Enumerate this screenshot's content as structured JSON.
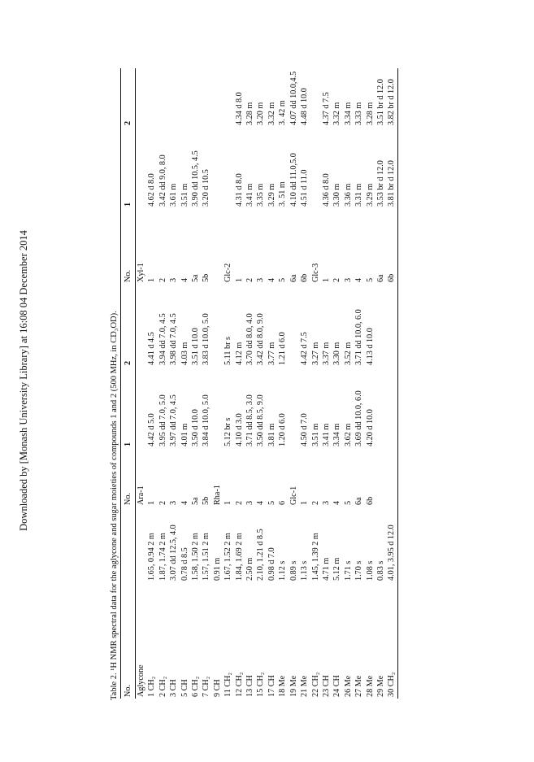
{
  "side_note": "Downloaded by [Monash University Library] at 16:08 04 December 2014",
  "caption": "Table 2.  ¹H NMR spectral data for the aglycone and sugar moieties of compounds 1 and 2 (500 MHz, in CD₃OD).",
  "table": {
    "header": [
      "No.",
      null,
      "No.",
      "1",
      "2",
      "No.",
      "1",
      "2"
    ],
    "rows": [
      [
        "Aglycone",
        null,
        "Ara-1",
        null,
        null,
        "Xyl-1",
        null,
        null
      ],
      [
        "1 CH₂",
        "1.65, 0.94 2 m",
        "1",
        "4.42 d 5.0",
        "4.41 d 4.5",
        "1",
        "4.62 d 8.0",
        null
      ],
      [
        "2 CH₂",
        "1.87, 1.74 2 m",
        "2",
        "3.95 dd 7.0, 5.0",
        "3.94 dd 7.0, 4.5",
        "2",
        "3.42 dd 9.0, 8.0",
        null
      ],
      [
        "3 CH",
        "3.07 dd 12.5, 4.0",
        "3",
        "3.97 dd 7.0, 4.5",
        "3.98 dd 7.0, 4.5",
        "3",
        "3.61 m",
        null
      ],
      [
        "5 CH",
        "0.78 d 8.5",
        "4",
        "4.01 m",
        "4.03 m",
        "4",
        "3.51 m",
        null
      ],
      [
        "6 CH₂",
        "1.58, 1.50 2 m",
        "5a",
        "3.50 d 10.0",
        "3.51 d 10.0",
        "5a",
        "3.90 dd 10.5, 4.5",
        null
      ],
      [
        "7 CH₂",
        "1.57, 1.51 2 m",
        "5b",
        "3.84 d 10.0, 5.0",
        "3.83 d 10.0, 5.0",
        "5b",
        "3.20 d 10.5",
        null
      ],
      [
        "9 CH",
        "0.91 m",
        "Rha-1",
        null,
        null,
        null,
        null,
        null
      ],
      [
        "11 CH₂",
        "1.67, 1.52 2 m",
        "1",
        "5.12 br s",
        "5.11 br s",
        "Glc-2",
        null,
        null
      ],
      [
        "12 CH₂",
        "1.84, 1.69 2 m",
        "2",
        "4.10 d 3.0",
        "4.12 m",
        "1",
        "4.31 d 8.0",
        "4.34 d 8.0"
      ],
      [
        "13 CH",
        "2.50 m",
        "3",
        "3.71 dd 8.5, 3.0",
        "3.70 dd 8.0, 4.0",
        "2",
        "3.41 m",
        "3.28 m"
      ],
      [
        "15 CH₂",
        "2.10, 1.21 d 8.5",
        "4",
        "3.50 dd 8.5, 9.0",
        "3.42 dd 8.0, 9.0",
        "3",
        "3.35 m",
        "3.20 m"
      ],
      [
        "17 CH",
        "0.98 d 7.0",
        "5",
        "3.81 m",
        "3.77 m",
        "4",
        "3.29 m",
        "3.32 m"
      ],
      [
        "18 Me",
        "1.12 s",
        "6",
        "1.20 d 6.0",
        "1.21 d 6.0",
        "5",
        "3. 51 m",
        "3. 42 m"
      ],
      [
        "19 Me",
        "0.89 s",
        "Glc-1",
        null,
        null,
        "6a",
        "4.10 dd 11.0,5.0",
        "4.07 dd 10.0,4.5"
      ],
      [
        "21 Me",
        "1.13 s",
        "1",
        "4.50 d 7.0",
        "4.42 d 7.5",
        "6b",
        "4.51 d 11.0",
        "4.48 d 10.0"
      ],
      [
        "22 CH₂",
        "1.45, 1.39 2 m",
        "2",
        "3.51 m",
        "3.27 m",
        "Glc-3",
        null,
        null
      ],
      [
        "23 CH",
        "4.71 m",
        "3",
        "3.41 m",
        "3.37 m",
        "1",
        "4.36 d 8.0",
        "4.37 d 7.5"
      ],
      [
        "24 CH",
        "5.12 m",
        "4",
        "3.34 m",
        "3.30 m",
        "2",
        "3.30 m",
        "3.32 m"
      ],
      [
        "26 Me",
        "1.71 s",
        "5",
        "3.62 m",
        "3.52 m",
        "3",
        "3.36 m",
        "3.34 m"
      ],
      [
        "27 Me",
        "1.70 s",
        "6a",
        "3.69 dd 10.0, 6.0",
        "3.71 dd 10.0, 6.0",
        "4",
        "3.31 m",
        "3.33 m"
      ],
      [
        "28 Me",
        "1.08 s",
        "6b",
        "4.20 d 10.0",
        "4.13 d 10.0",
        "5",
        "3.29 m",
        "3.28 m"
      ],
      [
        "29 Me",
        "0.83 s",
        null,
        null,
        null,
        "6a",
        "3.53 br d 12.0",
        "3.51 br d 12.0"
      ],
      [
        "30 CH₂",
        "4.01, 3.95 d 12.0",
        null,
        null,
        null,
        "6b",
        "3.81 br d 12.0",
        "3.82 br d 12.0"
      ]
    ]
  }
}
